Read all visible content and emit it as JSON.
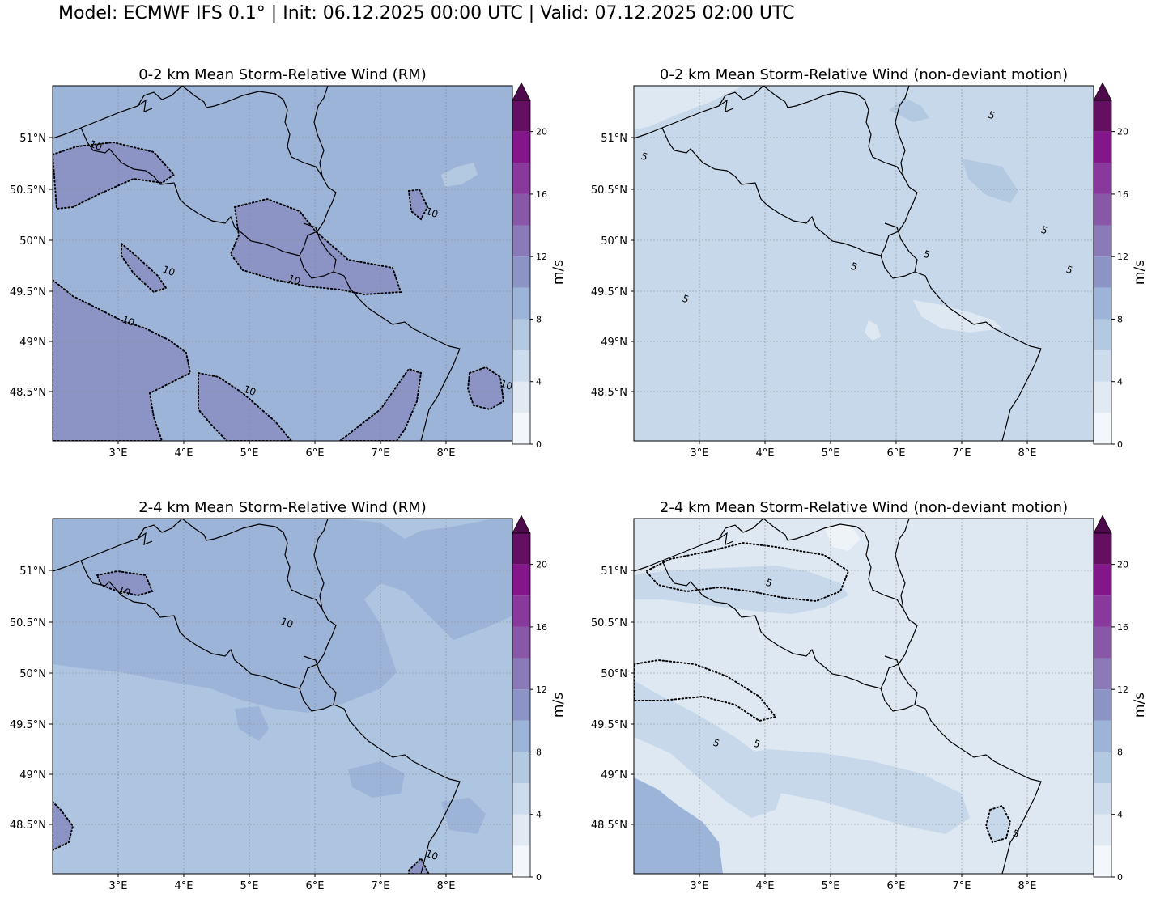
{
  "suptitle": "Model: ECMWF IFS 0.1° | Init: 06.12.2025 00:00 UTC | Valid: 07.12.2025 02:00 UTC",
  "colorbar": {
    "unit": "m/s",
    "ticks": [
      "0",
      "4",
      "8",
      "12",
      "16",
      "20"
    ],
    "levels": [
      0,
      2,
      4,
      6,
      8,
      10,
      12,
      14,
      16,
      18,
      20,
      22
    ],
    "colors": [
      "#f3f7fb",
      "#e1eaf3",
      "#cddcec",
      "#b3c8e1",
      "#9cb4d8",
      "#8c94c6",
      "#8a7ab8",
      "#8857a8",
      "#88399b",
      "#82168a",
      "#650f63"
    ],
    "extend_color": "#4d0b4b"
  },
  "axes": {
    "lon_ticks": [
      "3°E",
      "4°E",
      "5°E",
      "6°E",
      "7°E",
      "8°E"
    ],
    "lat_ticks": [
      "51°N",
      "50.5°N",
      "50°N",
      "49.5°N",
      "49°N",
      "48.5°N"
    ]
  },
  "panels": [
    {
      "title": "0-2 km Mean Storm-Relative Wind (RM)",
      "base_color": "#9cb4d8",
      "contour_label": "10",
      "contour_labels": [
        "10",
        "10",
        "10",
        "10",
        "10",
        "10",
        "10"
      ]
    },
    {
      "title": "0-2 km Mean Storm-Relative Wind (non-deviant motion)",
      "base_color": "#c7d8ea",
      "contour_label": "5",
      "contour_labels": [
        "5",
        "5",
        "5",
        "5",
        "5",
        "5",
        "5"
      ]
    },
    {
      "title": "2-4 km Mean Storm-Relative Wind (RM)",
      "base_color": "#adc5e0",
      "contour_label": "10",
      "contour_labels": [
        "10",
        "10",
        "10"
      ]
    },
    {
      "title": "2-4 km Mean Storm-Relative Wind (non-deviant motion)",
      "base_color": "#dde8f2",
      "contour_label": "5",
      "contour_labels": [
        "5",
        "5",
        "5",
        "5"
      ]
    }
  ]
}
